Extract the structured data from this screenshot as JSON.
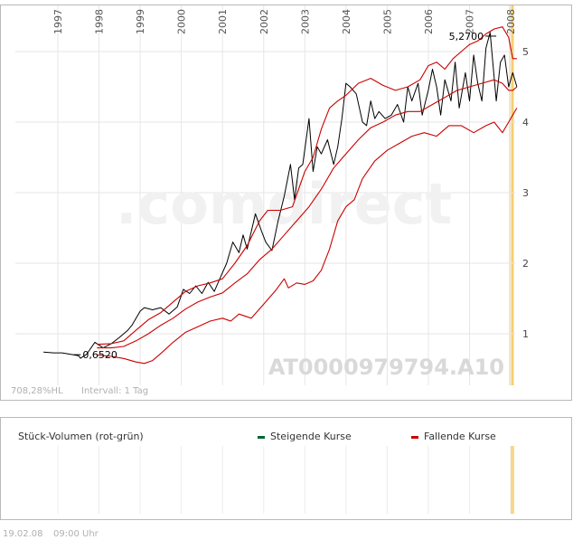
{
  "chart_data": {
    "type": "line",
    "x_ticks": [
      "1997",
      "1998",
      "1999",
      "2000",
      "2001",
      "2002",
      "2003",
      "2004",
      "2005",
      "2006",
      "2007",
      "2008"
    ],
    "y_ticks": [
      1,
      2,
      3,
      4,
      5
    ],
    "ylim": [
      0.3,
      5.55
    ],
    "xlim": [
      1996.65,
      2008.2
    ],
    "watermark": ".comdirect",
    "isin": "AT0000979794.A10",
    "footer_left": "708,28%HL",
    "interval": "Intervall: 1 Tag",
    "annotations": [
      {
        "text": "5,2700",
        "x": 2007.65,
        "y": 5.27
      },
      {
        "text": "0,6520",
        "x": 1997.6,
        "y": 0.652
      }
    ],
    "series": [
      {
        "role": "price",
        "color": "#000000",
        "x": [
          1996.65,
          1996.9,
          1997.1,
          1997.3,
          1997.5,
          1997.55,
          1997.7,
          1997.9,
          1998.1,
          1998.3,
          1998.5,
          1998.7,
          1998.8,
          1999.0,
          1999.1,
          1999.3,
          1999.5,
          1999.7,
          1999.9,
          2000.05,
          2000.2,
          2000.35,
          2000.5,
          2000.65,
          2000.8,
          2000.95,
          2001.1,
          2001.25,
          2001.4,
          2001.5,
          2001.6,
          2001.8,
          2001.95,
          2002.05,
          2002.2,
          2002.35,
          2002.5,
          2002.65,
          2002.75,
          2002.85,
          2002.95,
          2003.1,
          2003.2,
          2003.3,
          2003.4,
          2003.55,
          2003.7,
          2003.8,
          2003.9,
          2004.0,
          2004.1,
          2004.25,
          2004.4,
          2004.5,
          2004.6,
          2004.7,
          2004.8,
          2004.95,
          2005.1,
          2005.25,
          2005.4,
          2005.5,
          2005.6,
          2005.75,
          2005.85,
          2006.0,
          2006.1,
          2006.2,
          2006.3,
          2006.4,
          2006.55,
          2006.65,
          2006.75,
          2006.9,
          2007.0,
          2007.1,
          2007.2,
          2007.3,
          2007.4,
          2007.5,
          2007.65,
          2007.75,
          2007.85,
          2007.95,
          2008.05,
          2008.15
        ],
        "y": [
          0.74,
          0.73,
          0.73,
          0.71,
          0.69,
          0.652,
          0.71,
          0.88,
          0.8,
          0.86,
          0.95,
          1.05,
          1.12,
          1.32,
          1.37,
          1.34,
          1.37,
          1.28,
          1.38,
          1.63,
          1.57,
          1.68,
          1.57,
          1.73,
          1.6,
          1.8,
          2.0,
          2.3,
          2.15,
          2.4,
          2.2,
          2.7,
          2.45,
          2.3,
          2.18,
          2.6,
          2.95,
          3.4,
          2.9,
          3.35,
          3.4,
          4.05,
          3.3,
          3.65,
          3.55,
          3.75,
          3.4,
          3.65,
          4.05,
          4.55,
          4.5,
          4.4,
          4.0,
          3.95,
          4.3,
          4.05,
          4.15,
          4.05,
          4.1,
          4.25,
          4.0,
          4.5,
          4.3,
          4.55,
          4.1,
          4.45,
          4.75,
          4.5,
          4.1,
          4.6,
          4.3,
          4.85,
          4.2,
          4.7,
          4.3,
          4.95,
          4.55,
          4.3,
          5.05,
          5.27,
          4.3,
          4.85,
          4.95,
          4.5,
          4.7,
          4.5
        ]
      },
      {
        "role": "upper-band",
        "color": "#cc0000",
        "x": [
          1997.95,
          1998.3,
          1998.6,
          1998.9,
          1999.2,
          1999.5,
          1999.8,
          2000.1,
          2000.4,
          2000.7,
          2001.0,
          2001.3,
          2001.6,
          2001.9,
          2002.1,
          2002.4,
          2002.7,
          2003.0,
          2003.2,
          2003.4,
          2003.6,
          2003.8,
          2004.0,
          2004.3,
          2004.6,
          2004.9,
          2005.2,
          2005.5,
          2005.8,
          2006.0,
          2006.2,
          2006.4,
          2006.6,
          2006.8,
          2007.0,
          2007.2,
          2007.4,
          2007.6,
          2007.8,
          2007.95,
          2008.05,
          2008.15
        ],
        "y": [
          0.85,
          0.86,
          0.9,
          1.05,
          1.2,
          1.3,
          1.45,
          1.6,
          1.68,
          1.72,
          1.78,
          2.0,
          2.25,
          2.6,
          2.75,
          2.75,
          2.8,
          3.3,
          3.5,
          3.9,
          4.2,
          4.3,
          4.38,
          4.55,
          4.62,
          4.52,
          4.45,
          4.5,
          4.6,
          4.8,
          4.85,
          4.75,
          4.9,
          5.0,
          5.1,
          5.15,
          5.25,
          5.32,
          5.35,
          5.2,
          4.9,
          4.9
        ]
      },
      {
        "role": "middle-band",
        "color": "#cc0000",
        "x": [
          1997.95,
          1998.3,
          1998.6,
          1998.9,
          1999.2,
          1999.5,
          1999.8,
          2000.1,
          2000.4,
          2000.7,
          2001.0,
          2001.3,
          2001.6,
          2001.9,
          2002.2,
          2002.5,
          2002.8,
          2003.1,
          2003.4,
          2003.7,
          2004.0,
          2004.3,
          2004.6,
          2004.9,
          2005.2,
          2005.5,
          2005.8,
          2006.1,
          2006.4,
          2006.7,
          2007.0,
          2007.3,
          2007.6,
          2007.8,
          2007.95,
          2008.05,
          2008.15
        ],
        "y": [
          0.8,
          0.8,
          0.82,
          0.9,
          1.0,
          1.12,
          1.22,
          1.35,
          1.45,
          1.52,
          1.58,
          1.72,
          1.85,
          2.05,
          2.2,
          2.4,
          2.6,
          2.8,
          3.05,
          3.35,
          3.55,
          3.75,
          3.92,
          4.0,
          4.1,
          4.15,
          4.15,
          4.25,
          4.35,
          4.45,
          4.5,
          4.55,
          4.6,
          4.55,
          4.45,
          4.45,
          4.5
        ]
      },
      {
        "role": "lower-band",
        "color": "#cc0000",
        "x": [
          1997.95,
          1998.3,
          1998.6,
          1998.9,
          1999.1,
          1999.3,
          1999.5,
          1999.8,
          2000.1,
          2000.4,
          2000.7,
          2001.0,
          2001.2,
          2001.4,
          2001.7,
          2002.0,
          2002.3,
          2002.5,
          2002.6,
          2002.8,
          2003.0,
          2003.2,
          2003.4,
          2003.6,
          2003.8,
          2004.0,
          2004.2,
          2004.4,
          2004.7,
          2005.0,
          2005.3,
          2005.6,
          2005.9,
          2006.2,
          2006.5,
          2006.8,
          2007.1,
          2007.4,
          2007.6,
          2007.8,
          2007.95,
          2008.05,
          2008.15
        ],
        "y": [
          0.7,
          0.68,
          0.65,
          0.6,
          0.58,
          0.62,
          0.72,
          0.88,
          1.02,
          1.1,
          1.18,
          1.22,
          1.18,
          1.28,
          1.22,
          1.42,
          1.62,
          1.78,
          1.65,
          1.72,
          1.7,
          1.75,
          1.9,
          2.2,
          2.6,
          2.8,
          2.9,
          3.2,
          3.45,
          3.6,
          3.7,
          3.8,
          3.85,
          3.8,
          3.95,
          3.95,
          3.85,
          3.95,
          4.0,
          3.85,
          4.0,
          4.1,
          4.2
        ]
      }
    ]
  },
  "volume_panel": {
    "title": "Stück-Volumen (rot-grün)",
    "legend_up": "Steigende Kurse",
    "legend_down": "Fallende Kurse",
    "up_color": "#006633",
    "down_color": "#cc0000"
  },
  "footer": {
    "timestamp": "19.02.08",
    "time": "09:00 Uhr"
  }
}
